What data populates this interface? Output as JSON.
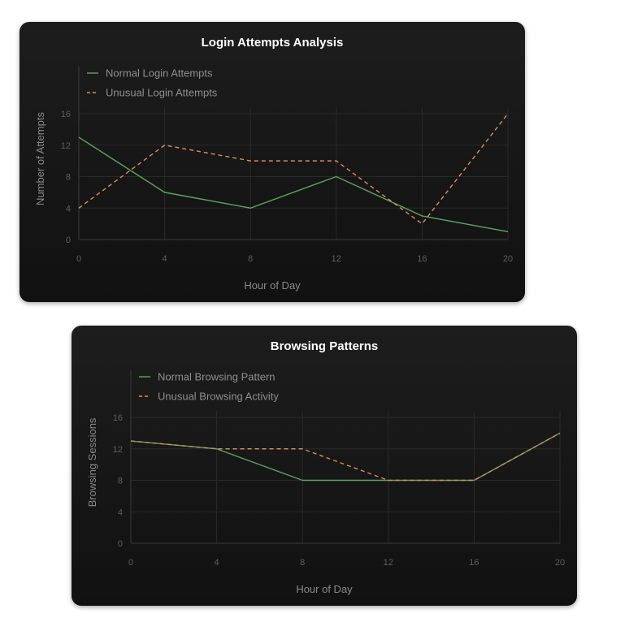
{
  "chart_data": [
    {
      "type": "line",
      "title": "Login Attempts Analysis",
      "xlabel": "Hour of Day",
      "ylabel": "Number of Attempts",
      "x": [
        0,
        4,
        8,
        12,
        16,
        20
      ],
      "xlim": [
        0,
        20
      ],
      "ylim": [
        0,
        16
      ],
      "xticks": [
        0,
        4,
        8,
        12,
        16,
        20
      ],
      "yticks": [
        0,
        4,
        8,
        12,
        16
      ],
      "grid": true,
      "legend": "top-left",
      "series": [
        {
          "name": "Normal Login Attempts",
          "values": [
            13,
            6,
            4,
            8,
            3,
            1
          ],
          "color": "#5fa463",
          "style": "solid"
        },
        {
          "name": "Unusual Login Attempts",
          "values": [
            4,
            12,
            10,
            10,
            2,
            16
          ],
          "color": "#d98b63",
          "style": "dashed"
        }
      ]
    },
    {
      "type": "line",
      "title": "Browsing Patterns",
      "xlabel": "Hour of Day",
      "ylabel": "Browsing Sessions",
      "x": [
        0,
        4,
        8,
        12,
        16,
        20
      ],
      "xlim": [
        0,
        20
      ],
      "ylim": [
        0,
        16
      ],
      "xticks": [
        0,
        4,
        8,
        12,
        16,
        20
      ],
      "yticks": [
        0,
        4,
        8,
        12,
        16
      ],
      "grid": true,
      "legend": "top-left",
      "series": [
        {
          "name": "Normal Browsing Pattern",
          "values": [
            13,
            12,
            8,
            8,
            8,
            14
          ],
          "color": "#5fa463",
          "style": "solid"
        },
        {
          "name": "Unusual Browsing Activity",
          "values": [
            13,
            12,
            12,
            8,
            8,
            14
          ],
          "color": "#d98b63",
          "style": "dashed"
        }
      ]
    }
  ]
}
